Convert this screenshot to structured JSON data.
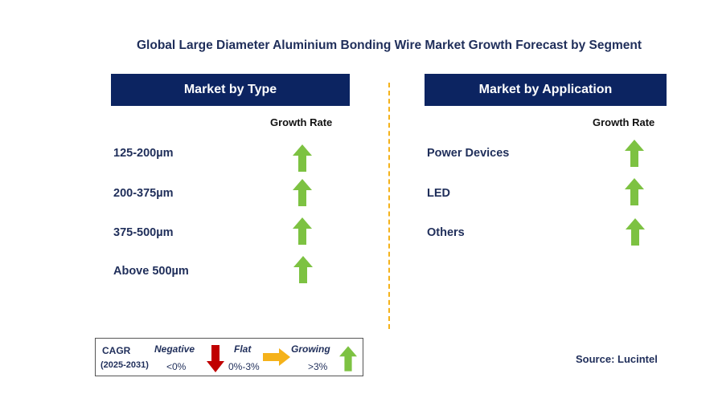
{
  "title": "Global Large Diameter Aluminium Bonding Wire Market Growth Forecast by Segment",
  "panels": {
    "type": {
      "header": "Market by Type",
      "growth_rate_label": "Growth Rate",
      "rows": [
        {
          "label": "125-200µm",
          "trend": "growing"
        },
        {
          "label": "200-375µm",
          "trend": "growing"
        },
        {
          "label": "375-500µm",
          "trend": "growing"
        },
        {
          "label": "Above 500µm",
          "trend": "growing"
        }
      ]
    },
    "application": {
      "header": "Market by Application",
      "growth_rate_label": "Growth Rate",
      "rows": [
        {
          "label": "Power Devices",
          "trend": "growing"
        },
        {
          "label": "LED",
          "trend": "growing"
        },
        {
          "label": "Others",
          "trend": "growing"
        }
      ]
    }
  },
  "legend": {
    "cagr_label": "CAGR",
    "period": "(2025-2031)",
    "negative": {
      "label": "Negative",
      "range": "<0%",
      "icon": "down-arrow-red"
    },
    "flat": {
      "label": "Flat",
      "range": "0%-3%",
      "icon": "right-arrow-orange"
    },
    "growing": {
      "label": "Growing",
      "range": ">3%",
      "icon": "up-arrow-green"
    }
  },
  "source": "Source: Lucintel",
  "colors": {
    "header_bg": "#0c2461",
    "text_navy": "#1f2e5a",
    "growing": "#7dc242",
    "negative": "#c00000",
    "flat": "#f5b21a",
    "divider": "#f5b21a"
  }
}
